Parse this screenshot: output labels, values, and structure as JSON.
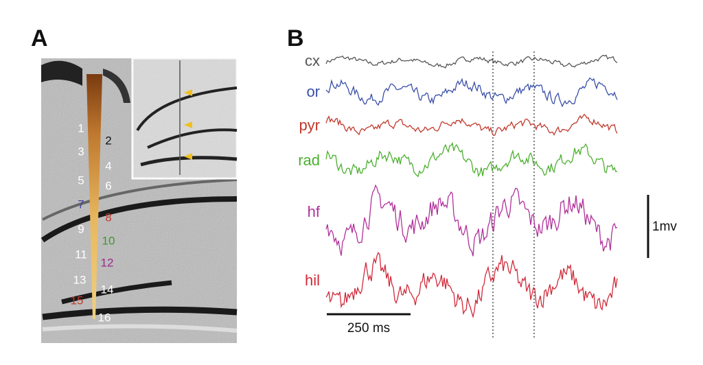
{
  "panel_a": {
    "label": "A",
    "sites": [
      {
        "label": "1",
        "color": "#ffffff"
      },
      {
        "label": "2",
        "color": "#111111"
      },
      {
        "label": "3",
        "color": "#ffffff"
      },
      {
        "label": "4",
        "color": "#ffffff"
      },
      {
        "label": "5",
        "color": "#ffffff"
      },
      {
        "label": "6",
        "color": "#ffffff"
      },
      {
        "label": "7",
        "color": "#3a3f9a"
      },
      {
        "label": "8",
        "color": "#c0392b"
      },
      {
        "label": "9",
        "color": "#ffffff"
      },
      {
        "label": "10",
        "color": "#3a9a2a"
      },
      {
        "label": "11",
        "color": "#ffffff"
      },
      {
        "label": "12",
        "color": "#9a2a8a"
      },
      {
        "label": "13",
        "color": "#ffffff"
      },
      {
        "label": "14",
        "color": "#ffffff"
      },
      {
        "label": "15",
        "color": "#c0392b"
      },
      {
        "label": "16",
        "color": "#ffffff"
      }
    ]
  },
  "panel_b": {
    "label": "B",
    "traces": [
      {
        "label": "cx",
        "color": "#555555"
      },
      {
        "label": "or",
        "color": "#3a4fa8"
      },
      {
        "label": "pyr",
        "color": "#c0392b"
      },
      {
        "label": "rad",
        "color": "#4caf30"
      },
      {
        "label": "hf",
        "color": "#b0309a"
      },
      {
        "label": "hil",
        "color": "#d02a3a"
      }
    ],
    "time_scale": "250 ms",
    "voltage_scale": "1mv"
  }
}
